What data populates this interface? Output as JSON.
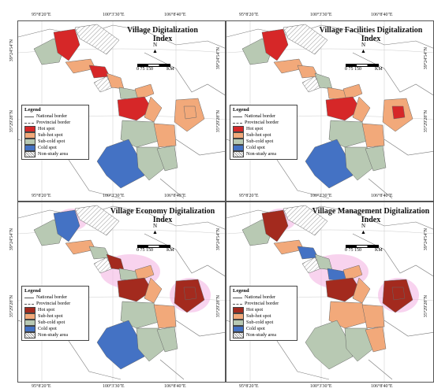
{
  "colors": {
    "hot": "#d62728",
    "sub_hot": "#f2a97a",
    "sub_cold": "#b8c9b3",
    "cold": "#4472c4",
    "hot_dark": "#a32a1e",
    "highlight": "#f4b6e4",
    "background_land": "#ffffff",
    "border": "#555555"
  },
  "coordinates": {
    "top_x": [
      "95°8'20\"E",
      "100°3'30\"E",
      "106°8'40\"E"
    ],
    "bottom_x": [
      "95°8'20\"E",
      "100°3'30\"E",
      "106°8'40\"E"
    ],
    "left_y": [
      "39°24'54\"N",
      "35°29'28\"N"
    ],
    "right_y": [
      "39°24'54\"N",
      "35°29'28\"N"
    ]
  },
  "scale": {
    "north_label": "N",
    "ticks": "0  75  150",
    "unit": "KM"
  },
  "legend": {
    "title": "Legend",
    "items": [
      "National border",
      "Provincial border",
      "Hot spot",
      "Sub-hot spot",
      "Sub-cold spot",
      "Cold spot",
      "Non-study area"
    ]
  },
  "panels": [
    {
      "title_line1": "Village Digitalization",
      "title_line2": "Index"
    },
    {
      "title_line1": "Village Facilities Digitalization",
      "title_line2": "Index"
    },
    {
      "title_line1": "Village Economy Digitalization",
      "title_line2": "Index"
    },
    {
      "title_line1": "Village Management Digitalization",
      "title_line2": "Index"
    }
  ]
}
